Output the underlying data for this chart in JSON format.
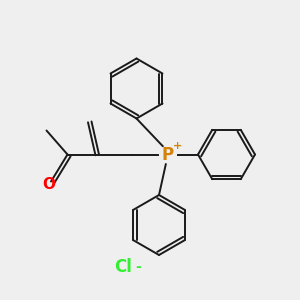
{
  "background_color": "#efefef",
  "bond_color": "#1a1a1a",
  "oxygen_color": "#ff0000",
  "phosphorus_color": "#d4820a",
  "chlorine_color": "#33ee33",
  "p_label": "P",
  "p_charge": "+",
  "o_label": "O",
  "cl_label": "Cl",
  "cl_charge": "-",
  "figsize": [
    3.0,
    3.0
  ],
  "dpi": 100,
  "lw": 1.4
}
